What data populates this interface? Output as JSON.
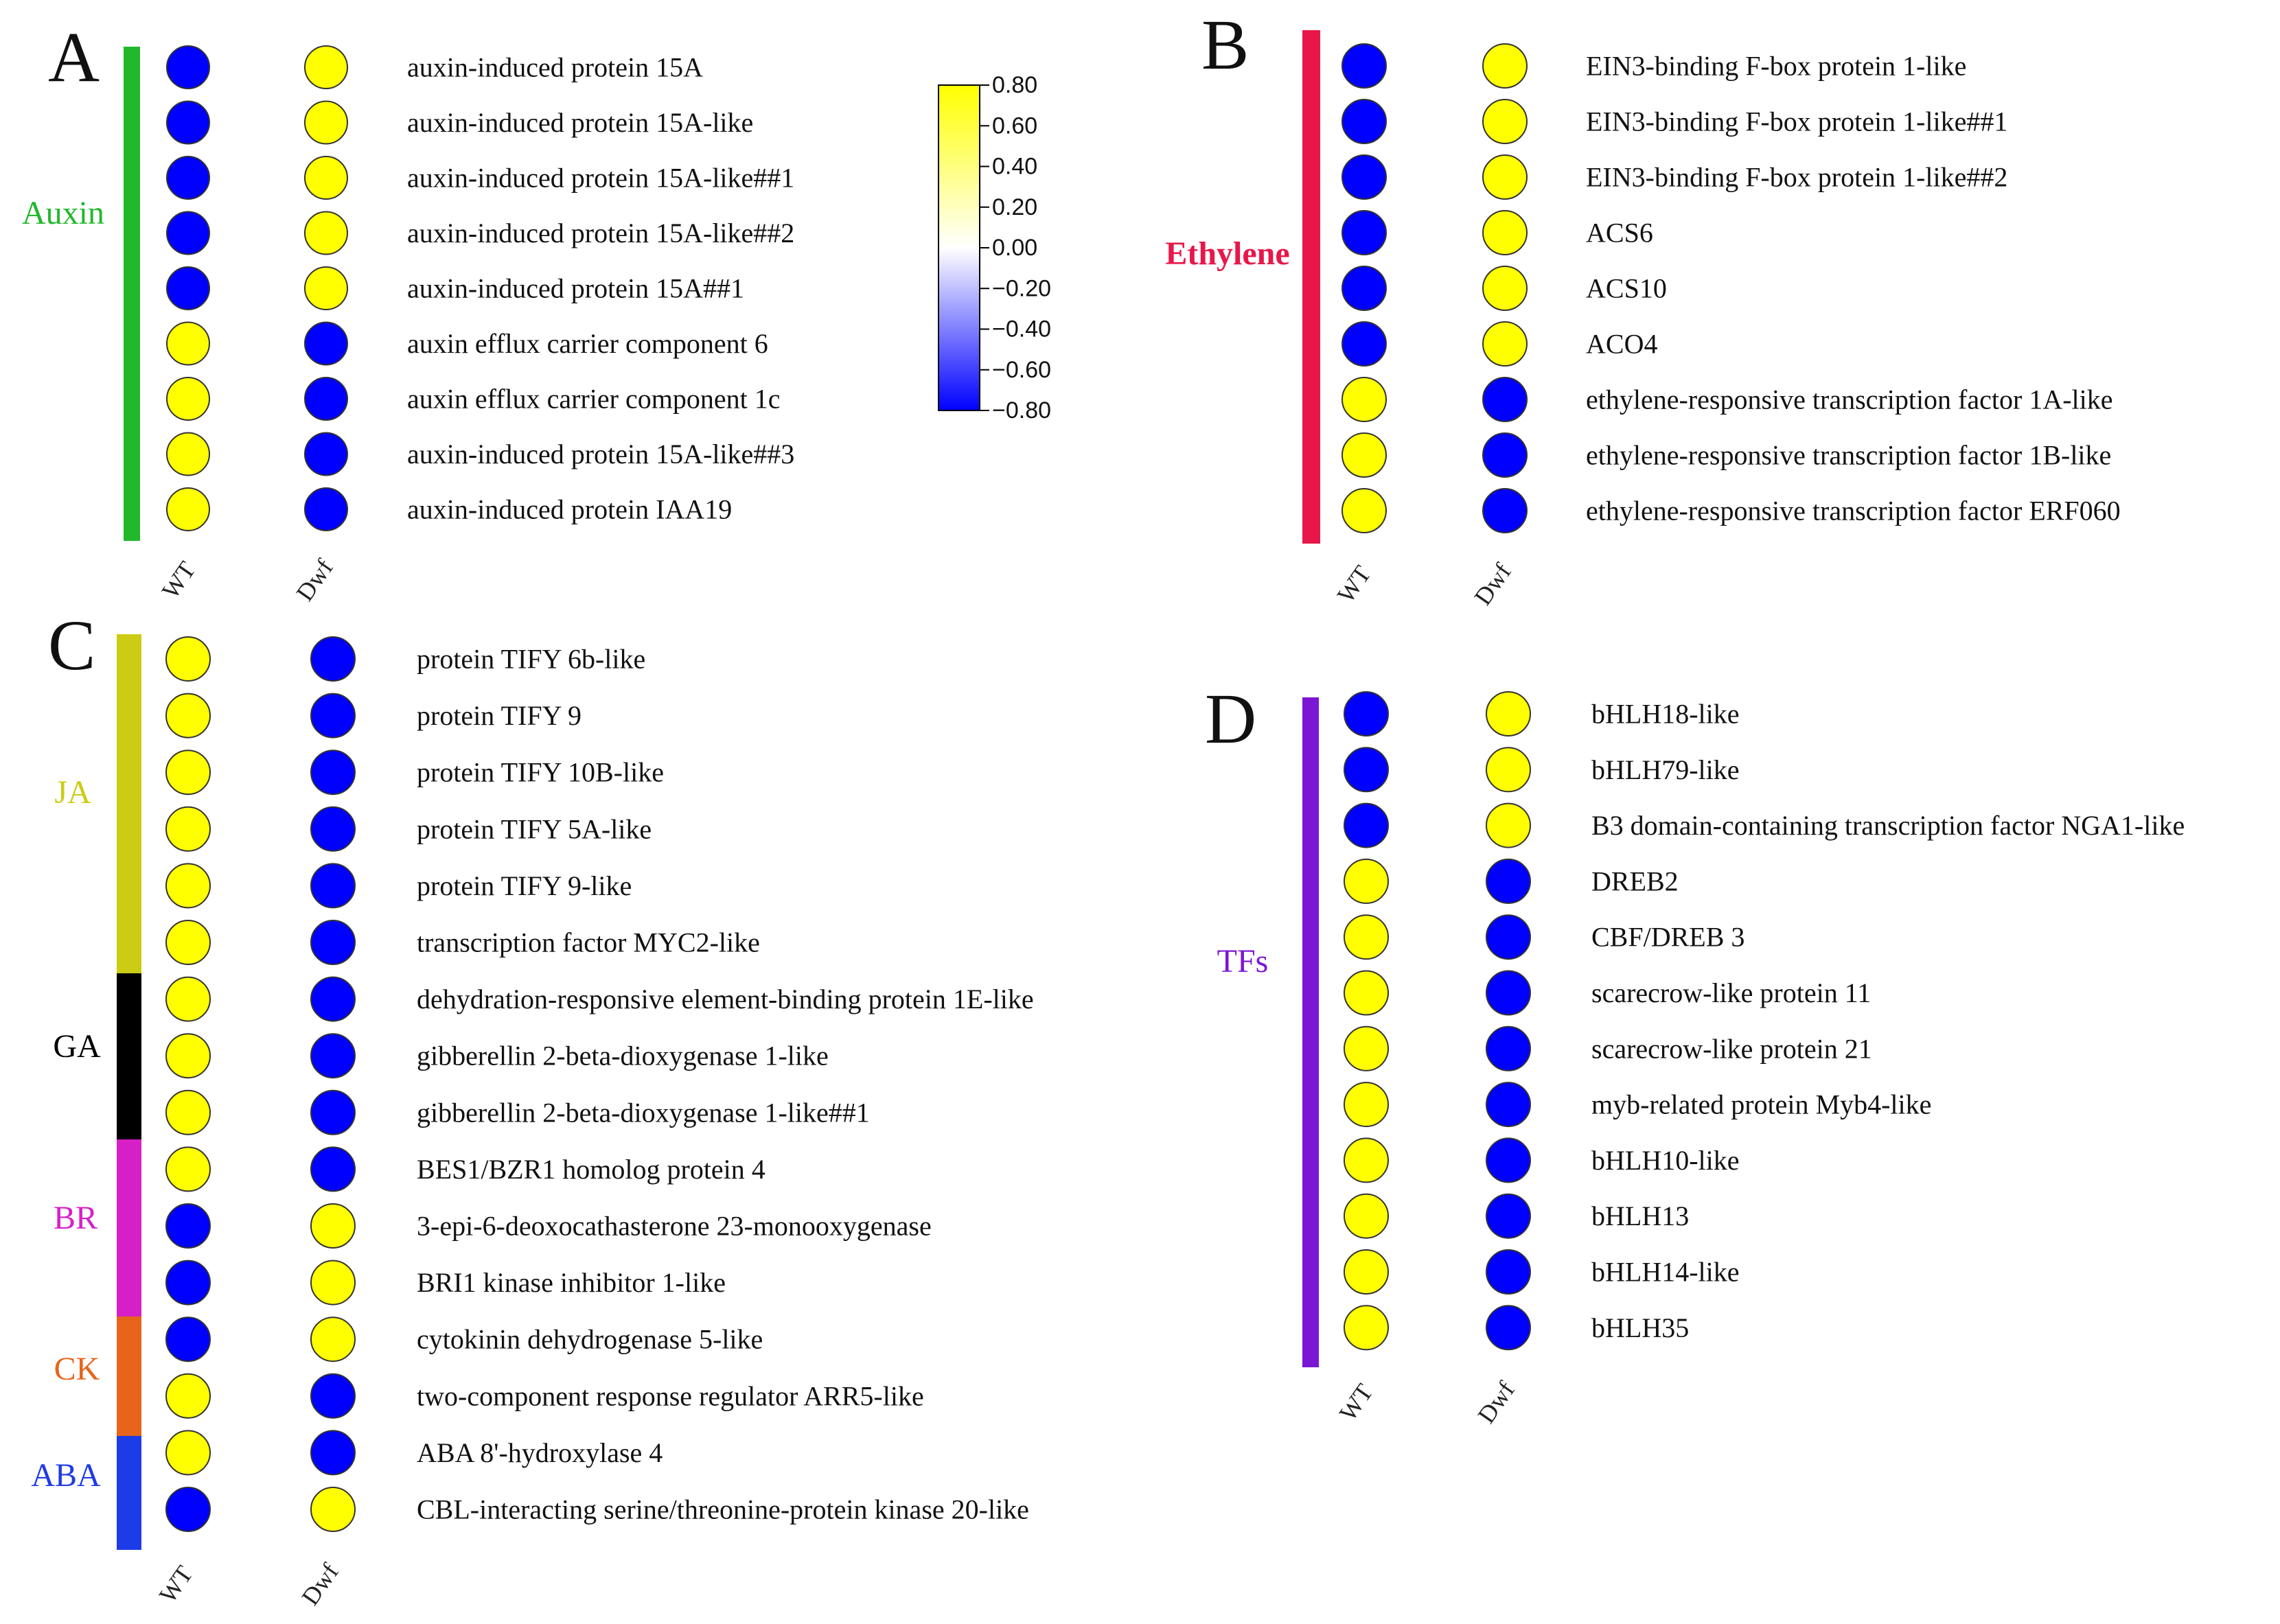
{
  "chart_data": {
    "type": "heatmap",
    "value_encoding": "circle fill colour: yellow = +0.80 (up-regulated), blue = -0.80 (down-regulated)",
    "colorbar": {
      "ticks": [
        "0.80",
        "0.60",
        "0.40",
        "0.20",
        "0.00",
        "-0.20",
        "-0.40",
        "-0.60",
        "-0.80"
      ],
      "min": -0.8,
      "max": 0.8,
      "colors": {
        "high": "#FFFF00",
        "mid": "#FFFFFF",
        "low": "#0000FF"
      }
    },
    "colors": {
      "up": "#FFFF00",
      "down": "#0000FF",
      "outline": "#333333"
    },
    "panels": [
      {
        "id": "A",
        "columns": [
          "WT",
          "Dwf"
        ],
        "groups": [
          {
            "name": "Auxin",
            "color": "#21B82B",
            "rows": [
              {
                "gene": "auxin-induced protein 15A",
                "values": [
                  -0.8,
                  0.8
                ]
              },
              {
                "gene": "auxin-induced protein 15A-like",
                "values": [
                  -0.8,
                  0.8
                ]
              },
              {
                "gene": "auxin-induced protein 15A-like##1",
                "values": [
                  -0.8,
                  0.8
                ]
              },
              {
                "gene": "auxin-induced protein 15A-like##2",
                "values": [
                  -0.8,
                  0.8
                ]
              },
              {
                "gene": "auxin-induced protein 15A##1",
                "values": [
                  -0.8,
                  0.8
                ]
              },
              {
                "gene": "auxin efflux carrier component 6",
                "values": [
                  0.8,
                  -0.8
                ]
              },
              {
                "gene": "auxin efflux carrier component 1c",
                "values": [
                  0.8,
                  -0.8
                ]
              },
              {
                "gene": "auxin-induced protein 15A-like##3",
                "values": [
                  0.8,
                  -0.8
                ]
              },
              {
                "gene": "auxin-induced protein IAA19",
                "values": [
                  0.8,
                  -0.8
                ]
              }
            ]
          }
        ]
      },
      {
        "id": "B",
        "columns": [
          "WT",
          "Dwf"
        ],
        "groups": [
          {
            "name": "Ethylene",
            "color": "#E8174A",
            "rows": [
              {
                "gene": "EIN3-binding F-box protein 1-like",
                "values": [
                  -0.8,
                  0.8
                ]
              },
              {
                "gene": "EIN3-binding F-box protein 1-like##1",
                "values": [
                  -0.8,
                  0.8
                ]
              },
              {
                "gene": "EIN3-binding F-box protein 1-like##2",
                "values": [
                  -0.8,
                  0.8
                ]
              },
              {
                "gene": "ACS6",
                "values": [
                  -0.8,
                  0.8
                ]
              },
              {
                "gene": "ACS10",
                "values": [
                  -0.8,
                  0.8
                ]
              },
              {
                "gene": "ACO4",
                "values": [
                  -0.8,
                  0.8
                ]
              },
              {
                "gene": "ethylene-responsive transcription factor 1A-like",
                "values": [
                  0.8,
                  -0.8
                ]
              },
              {
                "gene": "ethylene-responsive transcription factor 1B-like",
                "values": [
                  0.8,
                  -0.8
                ]
              },
              {
                "gene": "ethylene-responsive transcription factor ERF060",
                "values": [
                  0.8,
                  -0.8
                ]
              }
            ]
          }
        ]
      },
      {
        "id": "C",
        "columns": [
          "WT",
          "Dwf"
        ],
        "groups": [
          {
            "name": "JA",
            "color": "#CCCC14",
            "rows": [
              {
                "gene": "protein TIFY 6b-like",
                "values": [
                  0.8,
                  -0.8
                ]
              },
              {
                "gene": "protein TIFY 9",
                "values": [
                  0.8,
                  -0.8
                ]
              },
              {
                "gene": "protein TIFY 10B-like",
                "values": [
                  0.8,
                  -0.8
                ]
              },
              {
                "gene": "protein TIFY 5A-like",
                "values": [
                  0.8,
                  -0.8
                ]
              },
              {
                "gene": "protein TIFY 9-like",
                "values": [
                  0.8,
                  -0.8
                ]
              },
              {
                "gene": "transcription factor MYC2-like",
                "values": [
                  0.8,
                  -0.8
                ]
              }
            ]
          },
          {
            "name": "GA",
            "color": "#000000",
            "rows": [
              {
                "gene": "dehydration-responsive element-binding protein 1E-like",
                "values": [
                  0.8,
                  -0.8
                ]
              },
              {
                "gene": "gibberellin 2-beta-dioxygenase 1-like",
                "values": [
                  0.8,
                  -0.8
                ]
              },
              {
                "gene": "gibberellin 2-beta-dioxygenase 1-like##1",
                "values": [
                  0.8,
                  -0.8
                ]
              }
            ]
          },
          {
            "name": "BR",
            "color": "#D71FC8",
            "rows": [
              {
                "gene": "BES1/BZR1 homolog protein 4",
                "values": [
                  0.8,
                  -0.8
                ]
              },
              {
                "gene": "3-epi-6-deoxocathasterone 23-monooxygenase",
                "values": [
                  -0.8,
                  0.8
                ]
              },
              {
                "gene": "BRI1 kinase inhibitor 1-like",
                "values": [
                  -0.8,
                  0.8
                ]
              }
            ]
          },
          {
            "name": "CK",
            "color": "#E8641B",
            "rows": [
              {
                "gene": "cytokinin dehydrogenase 5-like",
                "values": [
                  -0.8,
                  0.8
                ]
              },
              {
                "gene": "two-component response regulator ARR5-like",
                "values": [
                  0.8,
                  -0.8
                ]
              }
            ]
          },
          {
            "name": "ABA",
            "color": "#1E3BE8",
            "rows": [
              {
                "gene": "ABA 8'-hydroxylase 4",
                "values": [
                  0.8,
                  -0.8
                ]
              },
              {
                "gene": "CBL-interacting serine/threonine-protein kinase 20-like",
                "values": [
                  -0.8,
                  0.8
                ]
              }
            ]
          }
        ]
      },
      {
        "id": "D",
        "columns": [
          "WT",
          "Dwf"
        ],
        "groups": [
          {
            "name": "TFs",
            "color": "#7B16D4",
            "rows": [
              {
                "gene": "bHLH18-like",
                "values": [
                  -0.8,
                  0.8
                ]
              },
              {
                "gene": "bHLH79-like",
                "values": [
                  -0.8,
                  0.8
                ]
              },
              {
                "gene": "B3 domain-containing transcription factor NGA1-like",
                "values": [
                  -0.8,
                  0.8
                ]
              },
              {
                "gene": "DREB2",
                "values": [
                  0.8,
                  -0.8
                ]
              },
              {
                "gene": "CBF/DREB 3",
                "values": [
                  0.8,
                  -0.8
                ]
              },
              {
                "gene": "scarecrow-like protein 11",
                "values": [
                  0.8,
                  -0.8
                ]
              },
              {
                "gene": "scarecrow-like protein 21",
                "values": [
                  0.8,
                  -0.8
                ]
              },
              {
                "gene": "myb-related protein Myb4-like",
                "values": [
                  0.8,
                  -0.8
                ]
              },
              {
                "gene": "bHLH10-like",
                "values": [
                  0.8,
                  -0.8
                ]
              },
              {
                "gene": "bHLH13",
                "values": [
                  0.8,
                  -0.8
                ]
              },
              {
                "gene": "bHLH14-like",
                "values": [
                  0.8,
                  -0.8
                ]
              },
              {
                "gene": "bHLH35",
                "values": [
                  0.8,
                  -0.8
                ]
              }
            ]
          }
        ]
      }
    ]
  }
}
